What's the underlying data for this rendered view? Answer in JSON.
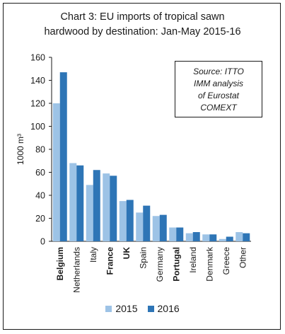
{
  "title": {
    "line1": "Chart 3: EU imports of tropical sawn",
    "line2": "hardwood by destination: Jan-May 2015-16"
  },
  "source_box": {
    "line1": "Source: ITTO",
    "line2": "IMM analysis",
    "line3": "of Eurostat",
    "line4": "COMEXT"
  },
  "colors": {
    "2015": "#9dc3e6",
    "2016": "#2e75b6"
  },
  "chart_data": {
    "type": "bar",
    "ylabel": "1000 m³",
    "ylim": [
      0,
      160
    ],
    "yticks": [
      "0",
      "20",
      "40",
      "60",
      "80",
      "100",
      "120",
      "140",
      "160"
    ],
    "categories": [
      "Belgium",
      "Netherlands",
      "Italy",
      "France",
      "UK",
      "Spain",
      "Germany",
      "Portugal",
      "Ireland",
      "Denmark",
      "Greece",
      "Other"
    ],
    "bold_categories": [
      "Belgium",
      "France",
      "UK",
      "Portugal"
    ],
    "series": [
      {
        "name": "2015",
        "values": [
          120,
          68,
          49,
          59,
          35,
          25,
          22,
          12,
          7,
          6,
          2,
          8
        ]
      },
      {
        "name": "2016",
        "values": [
          147,
          66,
          62,
          57,
          36,
          31,
          23,
          12,
          8,
          6,
          4,
          7
        ]
      }
    ],
    "grid": false,
    "legend": "bottom"
  }
}
